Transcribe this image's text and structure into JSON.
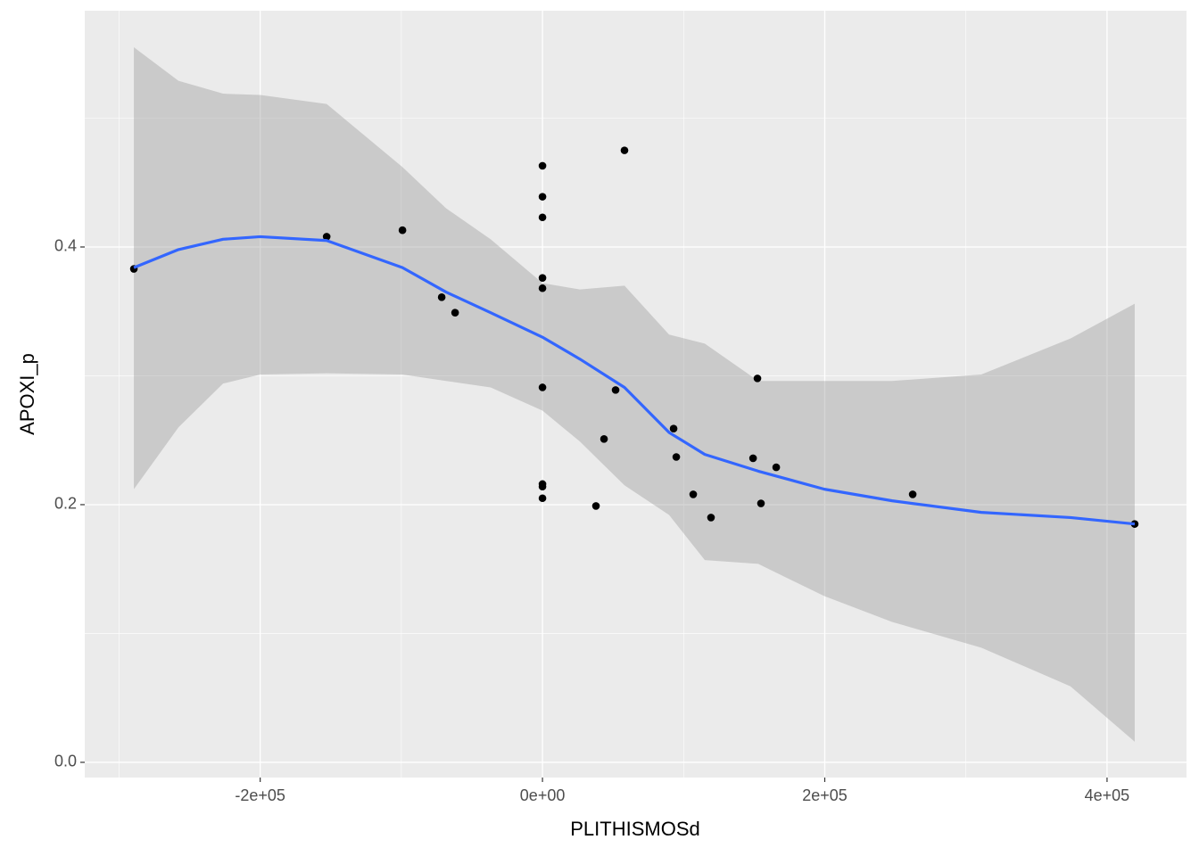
{
  "chart_data": {
    "type": "scatter",
    "x_label": "PLITHISMOSd",
    "y_label": "APOXI_p",
    "xlim": [
      -324300,
      456300
    ],
    "ylim": [
      -0.0118,
      0.5834
    ],
    "xticks": [
      {
        "value": -200000,
        "label": "-2e+05"
      },
      {
        "value": 0,
        "label": "0e+00"
      },
      {
        "value": 200000,
        "label": "2e+05"
      },
      {
        "value": 400000,
        "label": "4e+05"
      }
    ],
    "yticks": [
      {
        "value": 0,
        "label": "0.0"
      },
      0.2,
      0.4
    ],
    "x_minor_grid": [
      -300000,
      -100000,
      100000,
      300000
    ],
    "y_minor_grid": [
      0.1,
      0.3,
      0.5
    ],
    "grid": true,
    "points": {
      "color": "#000000",
      "x": [
        -289500,
        -152900,
        -99200,
        -71400,
        -61900,
        0,
        0,
        0,
        0,
        0,
        0,
        0,
        0,
        0,
        37900,
        58100,
        43600,
        51800,
        92900,
        94800,
        106800,
        119400,
        149200,
        152300,
        154800,
        165600,
        262300,
        419600
      ],
      "y": [
        0.383,
        0.408,
        0.413,
        0.361,
        0.349,
        0.463,
        0.439,
        0.423,
        0.376,
        0.368,
        0.291,
        0.216,
        0.214,
        0.205,
        0.199,
        0.475,
        0.251,
        0.289,
        0.259,
        0.237,
        0.208,
        0.19,
        0.236,
        0.298,
        0.201,
        0.229,
        0.208,
        0.185
      ]
    },
    "smooth": {
      "color": "#3366ff",
      "ribbon_color": "#999999",
      "x": [
        -289500,
        -257900,
        -226300,
        -200000,
        -152900,
        -99200,
        -68300,
        -36700,
        0,
        26500,
        58100,
        89700,
        115000,
        152900,
        199700,
        247700,
        310900,
        374100,
        419600
      ],
      "y": [
        0.384,
        0.398,
        0.406,
        0.408,
        0.405,
        0.384,
        0.365,
        0.349,
        0.33,
        0.313,
        0.291,
        0.256,
        0.239,
        0.226,
        0.212,
        0.203,
        0.194,
        0.19,
        0.185
      ],
      "ymin": [
        0.212,
        0.26,
        0.294,
        0.301,
        0.302,
        0.301,
        0.296,
        0.291,
        0.273,
        0.249,
        0.215,
        0.192,
        0.157,
        0.154,
        0.129,
        0.109,
        0.089,
        0.059,
        0.016
      ],
      "ymax": [
        0.555,
        0.529,
        0.519,
        0.518,
        0.511,
        0.462,
        0.43,
        0.406,
        0.372,
        0.367,
        0.37,
        0.332,
        0.325,
        0.296,
        0.296,
        0.296,
        0.301,
        0.329,
        0.356
      ]
    }
  }
}
